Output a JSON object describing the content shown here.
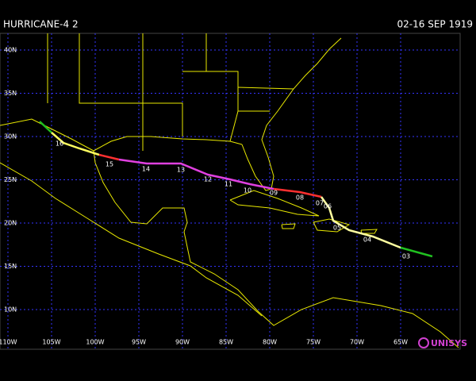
{
  "header": {
    "title": "HURRICANE-4 2",
    "dates": "02-16 SEP 1919"
  },
  "map": {
    "lat_labels": [
      "40N",
      "35N",
      "30N",
      "25N",
      "20N",
      "15N",
      "10N"
    ],
    "lon_labels": [
      "110W",
      "105W",
      "100W",
      "95W",
      "90W",
      "85W",
      "80W",
      "75W",
      "70W",
      "65W"
    ],
    "day_labels": [
      "16",
      "15",
      "14",
      "13",
      "12",
      "11",
      "10",
      "09",
      "08",
      "07",
      "06",
      "05",
      "04",
      "03"
    ],
    "credit": "UNISYS"
  }
}
